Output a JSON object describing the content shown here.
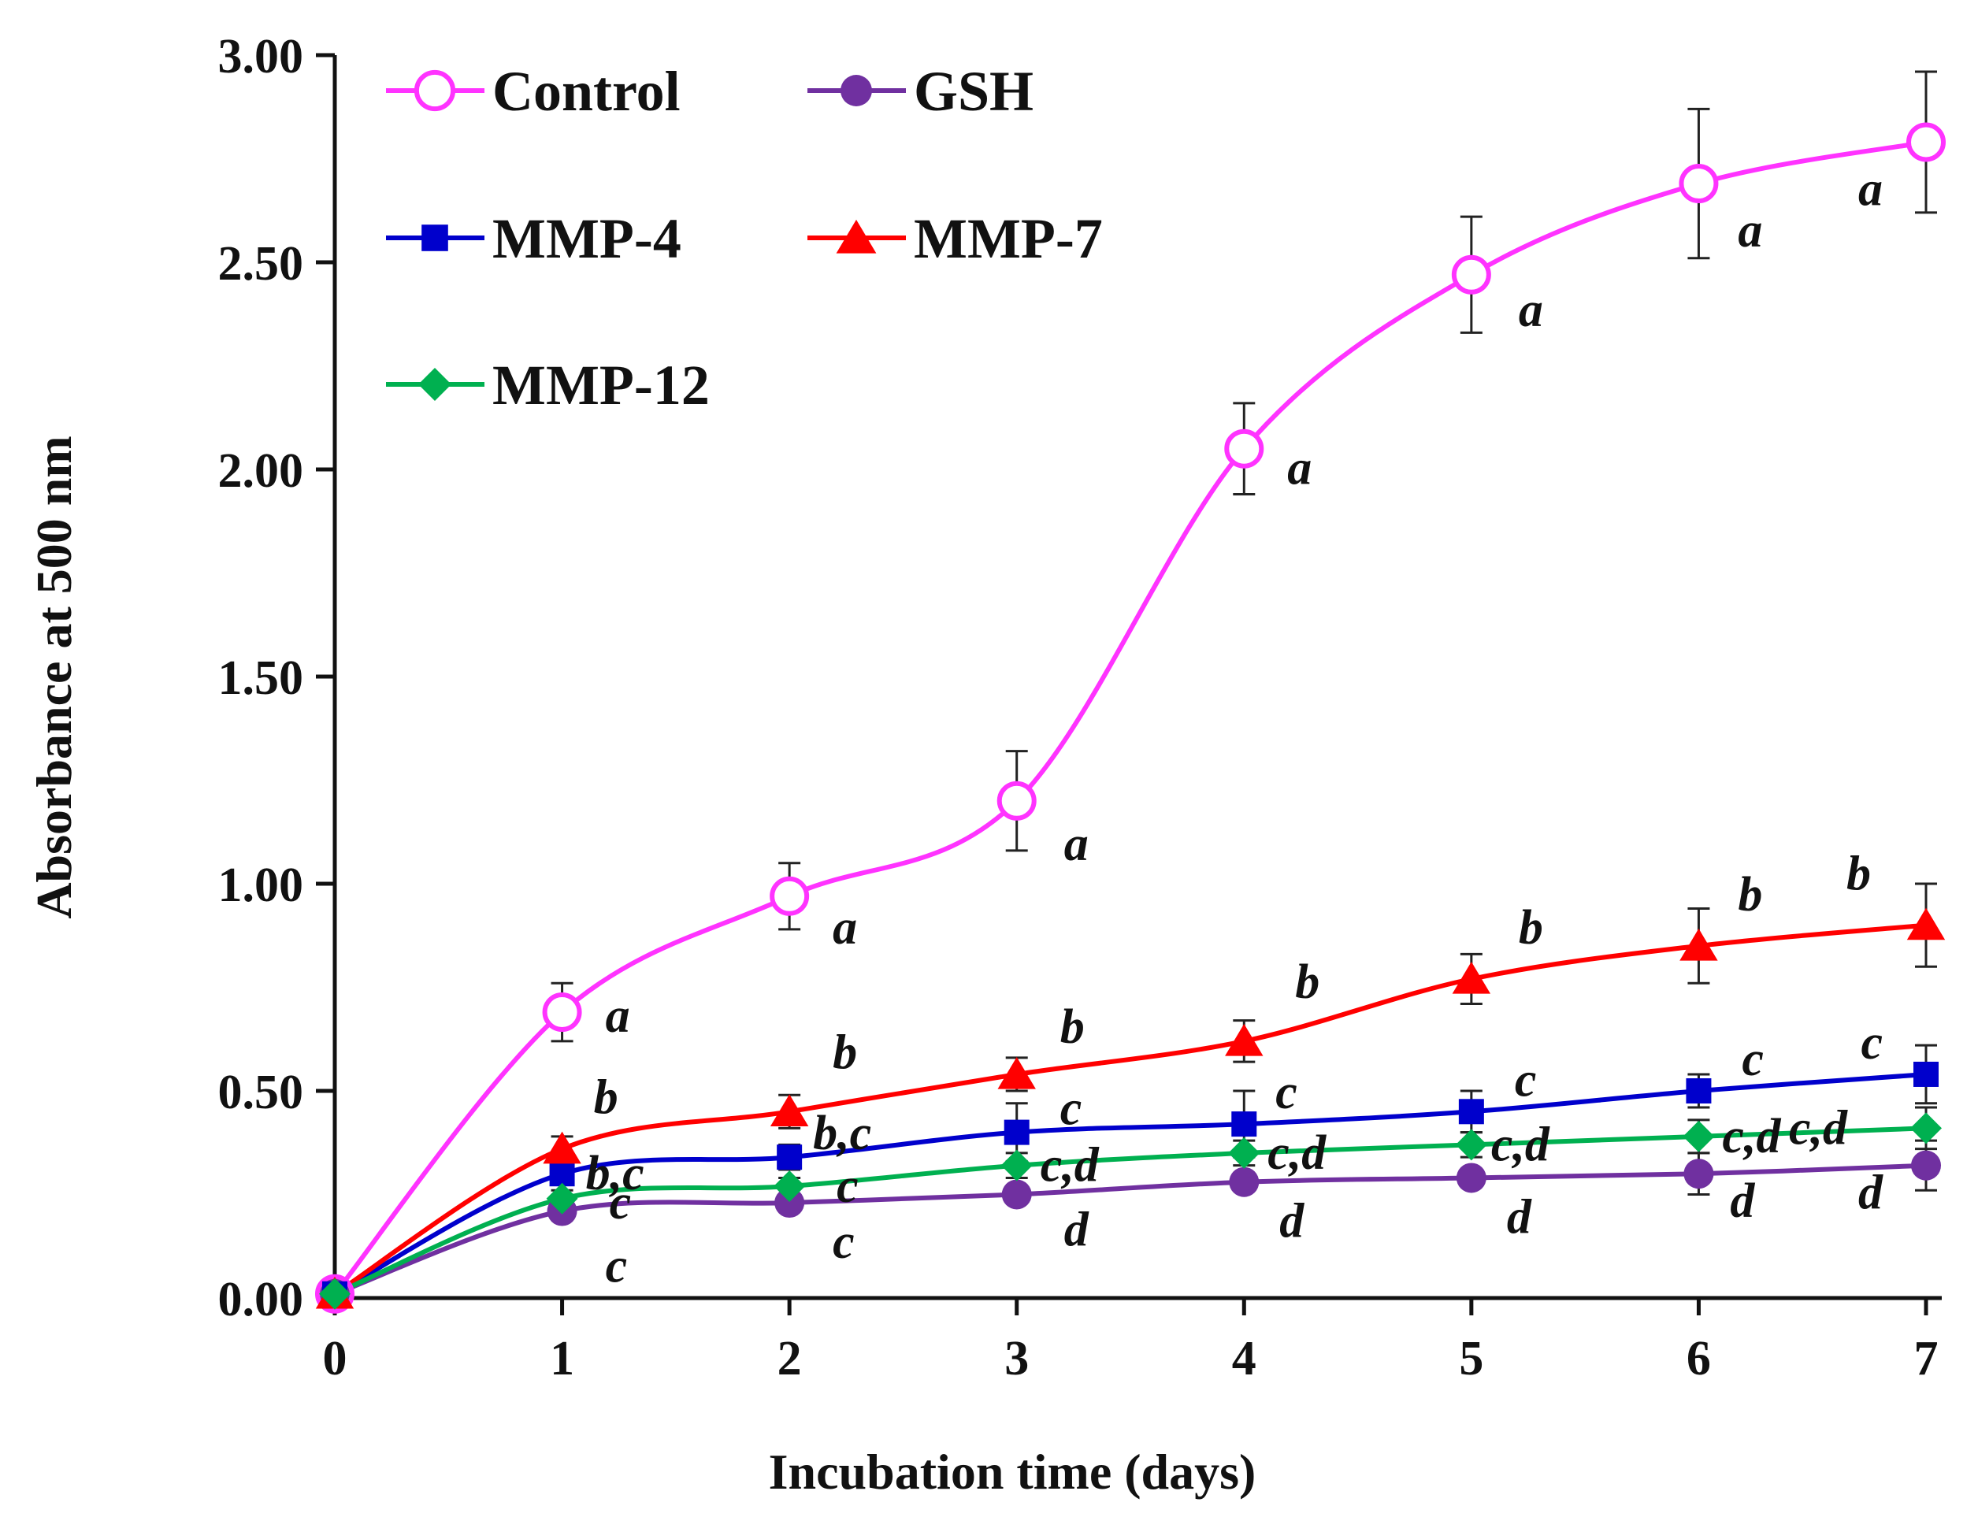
{
  "chart_data": {
    "type": "line",
    "xlabel": "Incubation time (days)",
    "ylabel": "Absorbance at 500 nm",
    "x": [
      0,
      1,
      2,
      3,
      4,
      5,
      6,
      7
    ],
    "x_tick_labels": [
      "0",
      "1",
      "2",
      "3",
      "4",
      "5",
      "6",
      "7"
    ],
    "xlim": [
      0,
      7
    ],
    "ylim": [
      0,
      3
    ],
    "y_ticks": [
      0,
      0.5,
      1,
      1.5,
      2,
      2.5,
      3
    ],
    "y_tick_labels": [
      "0.00",
      "0.50",
      "1.00",
      "1.50",
      "2.00",
      "2.50",
      "3.00"
    ],
    "grid": false,
    "legend_position": "top-left",
    "series": [
      {
        "name": "Control",
        "color": "#ff33ff",
        "marker": "open-circle",
        "values": [
          0.01,
          0.69,
          0.97,
          1.2,
          2.05,
          2.47,
          2.69,
          2.79
        ],
        "errors": [
          0,
          0.07,
          0.08,
          0.12,
          0.11,
          0.14,
          0.18,
          0.17
        ],
        "labels": [
          "",
          "a",
          "a",
          "a",
          "a",
          "a",
          "a",
          "a"
        ]
      },
      {
        "name": "GSH",
        "color": "#7030a0",
        "marker": "circle",
        "values": [
          0.01,
          0.21,
          0.23,
          0.25,
          0.28,
          0.29,
          0.3,
          0.32
        ],
        "errors": [
          0,
          0.02,
          0.02,
          0.02,
          0.02,
          0.02,
          0.05,
          0.06
        ],
        "labels": [
          "",
          "c",
          "c",
          "d",
          "d",
          "d",
          "d",
          "d"
        ]
      },
      {
        "name": "MMP-4",
        "color": "#0000cc",
        "marker": "square",
        "values": [
          0.01,
          0.3,
          0.34,
          0.4,
          0.42,
          0.45,
          0.5,
          0.54
        ],
        "errors": [
          0,
          0.02,
          0.03,
          0.07,
          0.08,
          0.05,
          0.04,
          0.07
        ],
        "labels": [
          "",
          "b,c",
          "b,c",
          "c",
          "c",
          "c",
          "c",
          "c"
        ]
      },
      {
        "name": "MMP-7",
        "color": "#ff0000",
        "marker": "triangle",
        "values": [
          0.01,
          0.36,
          0.45,
          0.54,
          0.62,
          0.77,
          0.85,
          0.9
        ],
        "errors": [
          0,
          0.03,
          0.04,
          0.04,
          0.05,
          0.06,
          0.09,
          0.1
        ],
        "labels": [
          "",
          "b",
          "b",
          "b",
          "b",
          "b",
          "b",
          "b"
        ]
      },
      {
        "name": "MMP-12",
        "color": "#00b050",
        "marker": "diamond",
        "values": [
          0.01,
          0.24,
          0.27,
          0.32,
          0.35,
          0.37,
          0.39,
          0.41
        ],
        "errors": [
          0,
          0.02,
          0.02,
          0.03,
          0.03,
          0.03,
          0.04,
          0.05
        ],
        "labels": [
          "",
          "c",
          "c",
          "c,d",
          "c,d",
          "c,d",
          "c,d",
          "c,d"
        ]
      }
    ]
  }
}
